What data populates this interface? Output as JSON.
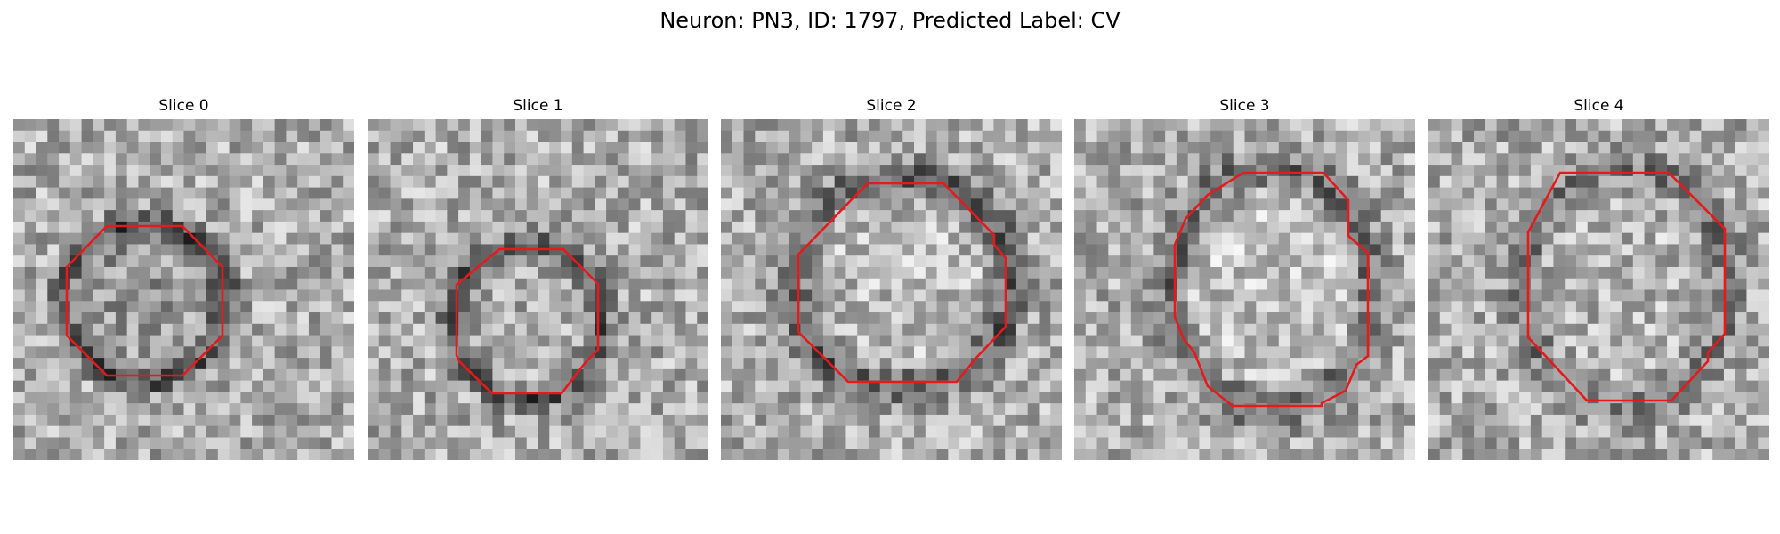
{
  "figure": {
    "title": "Neuron: PN3, ID: 1797, Predicted Label: CV",
    "colormap": "grayscale",
    "outline_color": "#e41a1c"
  },
  "panels": [
    {
      "title": "Slice 0",
      "seed": 11,
      "ring_dark": 0.85,
      "core": 0.55
    },
    {
      "title": "Slice 1",
      "seed": 23,
      "ring_dark": 0.8,
      "core": 0.35
    },
    {
      "title": "Slice 2",
      "seed": 37,
      "ring_dark": 0.7,
      "core": 0.2
    },
    {
      "title": "Slice 3",
      "seed": 51,
      "ring_dark": 0.55,
      "core": 0.15
    },
    {
      "title": "Slice 4",
      "seed": 67,
      "ring_dark": 0.45,
      "core": 0.25
    }
  ]
}
